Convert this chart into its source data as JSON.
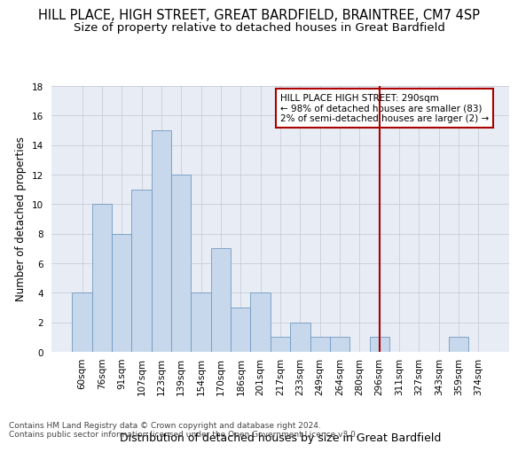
{
  "title": "HILL PLACE, HIGH STREET, GREAT BARDFIELD, BRAINTREE, CM7 4SP",
  "subtitle": "Size of property relative to detached houses in Great Bardfield",
  "xlabel": "Distribution of detached houses by size in Great Bardfield",
  "ylabel": "Number of detached properties",
  "categories": [
    "60sqm",
    "76sqm",
    "91sqm",
    "107sqm",
    "123sqm",
    "139sqm",
    "154sqm",
    "170sqm",
    "186sqm",
    "201sqm",
    "217sqm",
    "233sqm",
    "249sqm",
    "264sqm",
    "280sqm",
    "296sqm",
    "311sqm",
    "327sqm",
    "343sqm",
    "359sqm",
    "374sqm"
  ],
  "values": [
    4,
    10,
    8,
    11,
    15,
    12,
    4,
    7,
    3,
    4,
    1,
    2,
    1,
    1,
    0,
    1,
    0,
    0,
    0,
    1,
    0
  ],
  "bar_color": "#c8d8ec",
  "bar_edge_color": "#7098c0",
  "grid_color": "#c8ccd8",
  "background_color": "#e8edf5",
  "vline_x": 15,
  "vline_color": "#aa0000",
  "annotation_text": "HILL PLACE HIGH STREET: 290sqm\n← 98% of detached houses are smaller (83)\n2% of semi-detached houses are larger (2) →",
  "annotation_box_color": "#ffffff",
  "annotation_border_color": "#aa0000",
  "ylim": [
    0,
    18
  ],
  "yticks": [
    0,
    2,
    4,
    6,
    8,
    10,
    12,
    14,
    16,
    18
  ],
  "footer": "Contains HM Land Registry data © Crown copyright and database right 2024.\nContains public sector information licensed under the Open Government Licence v3.0.",
  "title_fontsize": 10.5,
  "subtitle_fontsize": 9.5,
  "xlabel_fontsize": 9,
  "ylabel_fontsize": 8.5,
  "tick_fontsize": 7.5,
  "annotation_fontsize": 7.5,
  "footer_fontsize": 6.5
}
